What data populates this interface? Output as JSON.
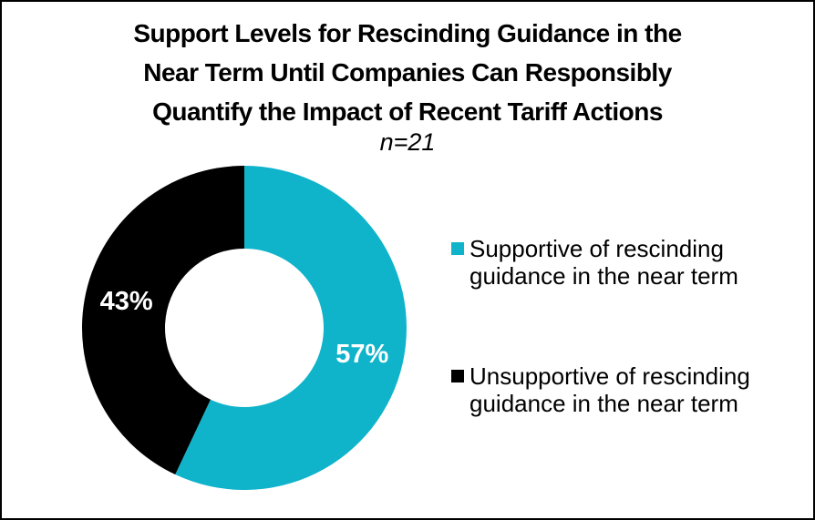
{
  "frame": {
    "border_color": "#000000",
    "background_color": "#ffffff"
  },
  "chart_data": {
    "type": "pie",
    "subtype": "donut",
    "title": "Support Levels for Rescinding Guidance in the Near Term Until Companies Can Responsibly Quantify the Impact of Recent Tariff Actions",
    "title_lines": [
      "Support Levels for Rescinding Guidance in the",
      "Near Term Until Companies Can Responsibly",
      "Quantify the Impact of Recent Tariff Actions"
    ],
    "subtitle": "n=21",
    "sample_size": 21,
    "slices": [
      {
        "label": "Supportive of rescinding guidance in the near term",
        "label_lines": [
          "Supportive of rescinding",
          "guidance in the near term"
        ],
        "value_pct": 57,
        "data_label": "57%",
        "color": "#0FB4CB"
      },
      {
        "label": "Unsupportive of rescinding guidance in the near term",
        "label_lines": [
          "Unsupportive of rescinding",
          "guidance in the near term"
        ],
        "value_pct": 43,
        "data_label": "43%",
        "color": "#000000"
      }
    ],
    "start_angle_deg": 0,
    "direction": "clockwise",
    "donut_hole_ratio": 0.49,
    "data_label_color": "#ffffff",
    "legend_position": "right",
    "grid": false
  }
}
